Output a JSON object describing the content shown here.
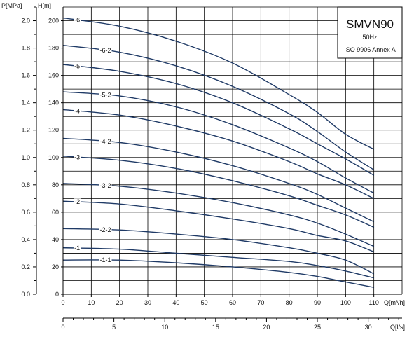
{
  "chart_data": {
    "type": "line",
    "legend_box": {
      "title": "SMVN90",
      "frequency": "50Hz",
      "standard": "ISO 9906 Annex A"
    },
    "axes": {
      "x_primary": {
        "label": "Q[m³/h]",
        "ticks": [
          0,
          10,
          20,
          30,
          40,
          50,
          60,
          70,
          80,
          90,
          100,
          110
        ],
        "range": [
          0,
          120
        ]
      },
      "x_secondary": {
        "label": "Q[l/s]",
        "ticks": [
          0,
          5,
          10,
          15,
          20,
          25,
          30
        ],
        "range": [
          0,
          33.33
        ]
      },
      "y_left": {
        "label": "P[MPa]",
        "ticks": [
          "0.0",
          "0.2",
          "0.4",
          "0.6",
          "0.8",
          "1.0",
          "1.2",
          "1.4",
          "1.6",
          "1.8",
          "2.0"
        ],
        "range": [
          0,
          2.0
        ]
      },
      "y_right": {
        "label": "H[m]",
        "ticks": [
          0,
          20,
          40,
          60,
          80,
          100,
          120,
          140,
          160,
          180,
          200
        ],
        "range": [
          0,
          210
        ]
      }
    },
    "grid": true,
    "series": [
      {
        "name": "-6",
        "label_x": 5,
        "points": [
          [
            0,
            202
          ],
          [
            20,
            196
          ],
          [
            40,
            185
          ],
          [
            60,
            169
          ],
          [
            80,
            146
          ],
          [
            90,
            133
          ],
          [
            100,
            117
          ],
          [
            110,
            106
          ]
        ]
      },
      {
        "name": "-6-2",
        "label_x": 15,
        "points": [
          [
            0,
            182
          ],
          [
            20,
            177
          ],
          [
            40,
            167
          ],
          [
            60,
            152
          ],
          [
            80,
            132
          ],
          [
            90,
            119
          ],
          [
            100,
            104
          ],
          [
            110,
            91
          ]
        ]
      },
      {
        "name": "-5",
        "label_x": 5,
        "points": [
          [
            0,
            168
          ],
          [
            20,
            163
          ],
          [
            40,
            154
          ],
          [
            60,
            140
          ],
          [
            80,
            121
          ],
          [
            90,
            110
          ],
          [
            100,
            99
          ],
          [
            110,
            87
          ]
        ]
      },
      {
        "name": "-5-2",
        "label_x": 15,
        "points": [
          [
            0,
            148
          ],
          [
            20,
            145
          ],
          [
            40,
            137
          ],
          [
            60,
            124
          ],
          [
            80,
            107
          ],
          [
            90,
            97
          ],
          [
            100,
            85
          ],
          [
            110,
            74
          ]
        ]
      },
      {
        "name": "-4",
        "label_x": 5,
        "points": [
          [
            0,
            135
          ],
          [
            20,
            131
          ],
          [
            40,
            123
          ],
          [
            60,
            112
          ],
          [
            80,
            97
          ],
          [
            90,
            88
          ],
          [
            100,
            80
          ],
          [
            110,
            70
          ]
        ]
      },
      {
        "name": "-4-2",
        "label_x": 15,
        "points": [
          [
            0,
            114
          ],
          [
            20,
            111
          ],
          [
            40,
            104
          ],
          [
            60,
            94
          ],
          [
            80,
            81
          ],
          [
            90,
            73
          ],
          [
            100,
            63
          ],
          [
            110,
            53
          ]
        ]
      },
      {
        "name": "-3",
        "label_x": 5,
        "points": [
          [
            0,
            101
          ],
          [
            20,
            98
          ],
          [
            40,
            92
          ],
          [
            60,
            83
          ],
          [
            80,
            72
          ],
          [
            90,
            65
          ],
          [
            100,
            58
          ],
          [
            110,
            49
          ]
        ]
      },
      {
        "name": "-3-2",
        "label_x": 15,
        "points": [
          [
            0,
            81
          ],
          [
            20,
            79
          ],
          [
            40,
            74
          ],
          [
            60,
            67
          ],
          [
            80,
            58
          ],
          [
            90,
            52
          ],
          [
            100,
            44
          ],
          [
            110,
            35
          ]
        ]
      },
      {
        "name": "-2",
        "label_x": 5,
        "points": [
          [
            0,
            68
          ],
          [
            20,
            66
          ],
          [
            40,
            61
          ],
          [
            60,
            55
          ],
          [
            80,
            48
          ],
          [
            90,
            43
          ],
          [
            100,
            39
          ],
          [
            110,
            31
          ]
        ]
      },
      {
        "name": "-2-2",
        "label_x": 15,
        "points": [
          [
            0,
            48
          ],
          [
            20,
            47
          ],
          [
            40,
            44
          ],
          [
            60,
            40
          ],
          [
            80,
            34
          ],
          [
            90,
            30
          ],
          [
            100,
            25
          ],
          [
            110,
            15
          ]
        ]
      },
      {
        "name": "-1",
        "label_x": 5,
        "points": [
          [
            0,
            34
          ],
          [
            20,
            33
          ],
          [
            40,
            30
          ],
          [
            60,
            27
          ],
          [
            80,
            24
          ],
          [
            90,
            21
          ],
          [
            100,
            17
          ],
          [
            110,
            12
          ]
        ]
      },
      {
        "name": "-1-1",
        "label_x": 15,
        "points": [
          [
            0,
            25
          ],
          [
            20,
            25
          ],
          [
            40,
            23
          ],
          [
            60,
            20
          ],
          [
            80,
            16
          ],
          [
            90,
            13
          ],
          [
            100,
            9
          ],
          [
            110,
            5
          ]
        ]
      }
    ],
    "line_color": "#1f3a66"
  }
}
